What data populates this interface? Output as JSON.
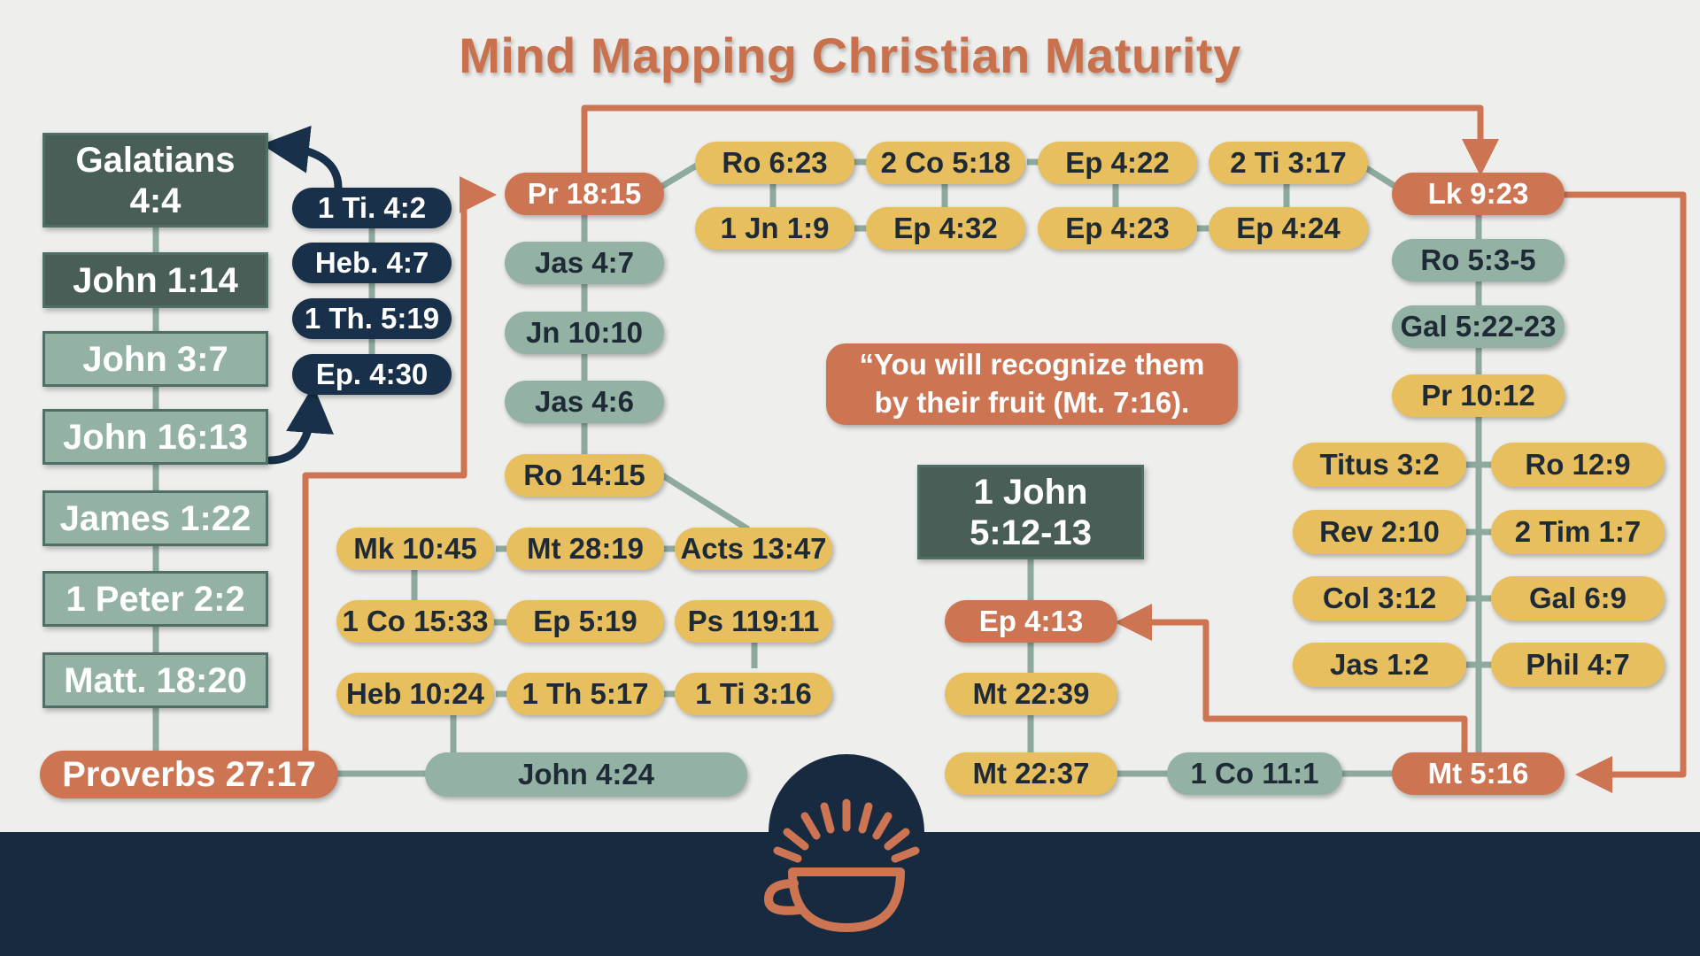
{
  "title": "Mind Mapping Christian Maturity",
  "quote": "“You will recognize them\nby their fruit (Mt. 7:16).",
  "colors": {
    "background": "#eeeeec",
    "title": "#c8714c",
    "orange": "#cd7552",
    "yellow": "#e8bf5e",
    "sage": "#93b2a4",
    "dark_box": "#4a5e58",
    "navy": "#183049",
    "footer": "#172a40"
  },
  "left_column": {
    "galatians": "Galatians\n4:4",
    "john_1_14": "John 1:14",
    "john_3_7": "John 3:7",
    "john_16_13": "John 16:13",
    "james_1_22": "James 1:22",
    "peter_2_2": "1 Peter 2:2",
    "matt_18_20": "Matt. 18:20",
    "proverbs_27_17": "Proverbs 27:17"
  },
  "navy_stack": [
    "1 Ti. 4:2",
    "Heb. 4:7",
    "1 Th. 5:19",
    "Ep. 4:30"
  ],
  "center_column": {
    "pr_18_15": "Pr 18:15",
    "jas_4_7": "Jas 4:7",
    "jn_10_10": "Jn 10:10",
    "jas_4_6": "Jas 4:6",
    "ro_14_15": "Ro 14:15"
  },
  "top_grid": {
    "top_row": [
      "Ro 6:23",
      "2 Co 5:18",
      "Ep 4:22",
      "2 Ti 3:17"
    ],
    "bottom_row": [
      "1 Jn 1:9",
      "Ep 4:32",
      "Ep 4:23",
      "Ep 4:24"
    ]
  },
  "bottom_grid": {
    "row1": [
      "Mk 10:45",
      "Mt 28:19",
      "Acts 13:47"
    ],
    "row2": [
      "1 Co 15:33",
      "Ep 5:19",
      "Ps 119:11"
    ],
    "row3": [
      "Heb 10:24",
      "1 Th 5:17",
      "1 Ti 3:16"
    ]
  },
  "john_4_24": "John 4:24",
  "right_column": {
    "lk_9_23": "Lk 9:23",
    "ro_5_3_5": "Ro 5:3-5",
    "gal_5_22_23": "Gal 5:22-23",
    "pr_10_12": "Pr 10:12",
    "mt_5_16": "Mt 5:16"
  },
  "right_grid": {
    "left": [
      "Titus 3:2",
      "Rev 2:10",
      "Col 3:12",
      "Jas 1:2"
    ],
    "right": [
      "Ro 12:9",
      "2 Tim 1:7",
      "Gal 6:9",
      "Phil 4:7"
    ]
  },
  "center_bottom": {
    "john_5_12": "1 John\n5:12-13",
    "ep_4_13": "Ep 4:13",
    "mt_22_39": "Mt 22:39",
    "mt_22_37": "Mt 22:37",
    "co_11_1": "1 Co 11:1"
  },
  "logo": {
    "icon": "sunrise-cup-icon"
  }
}
